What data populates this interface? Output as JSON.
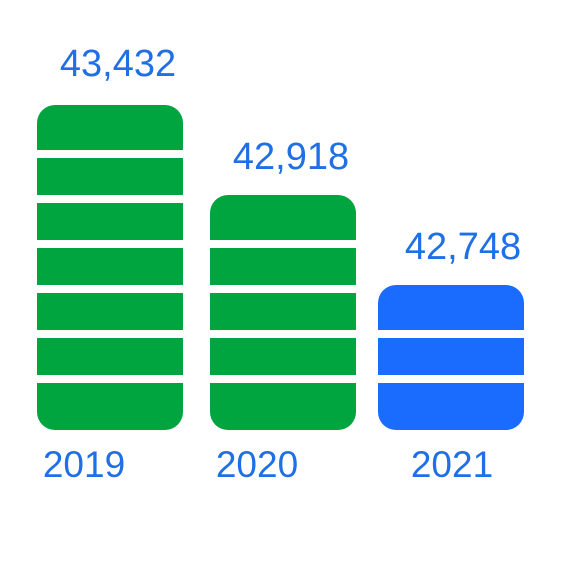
{
  "items": [
    {
      "value": "43,432",
      "year": "2019"
    },
    {
      "value": "42,918",
      "year": "2020"
    },
    {
      "value": "42,748",
      "year": "2021"
    }
  ]
}
